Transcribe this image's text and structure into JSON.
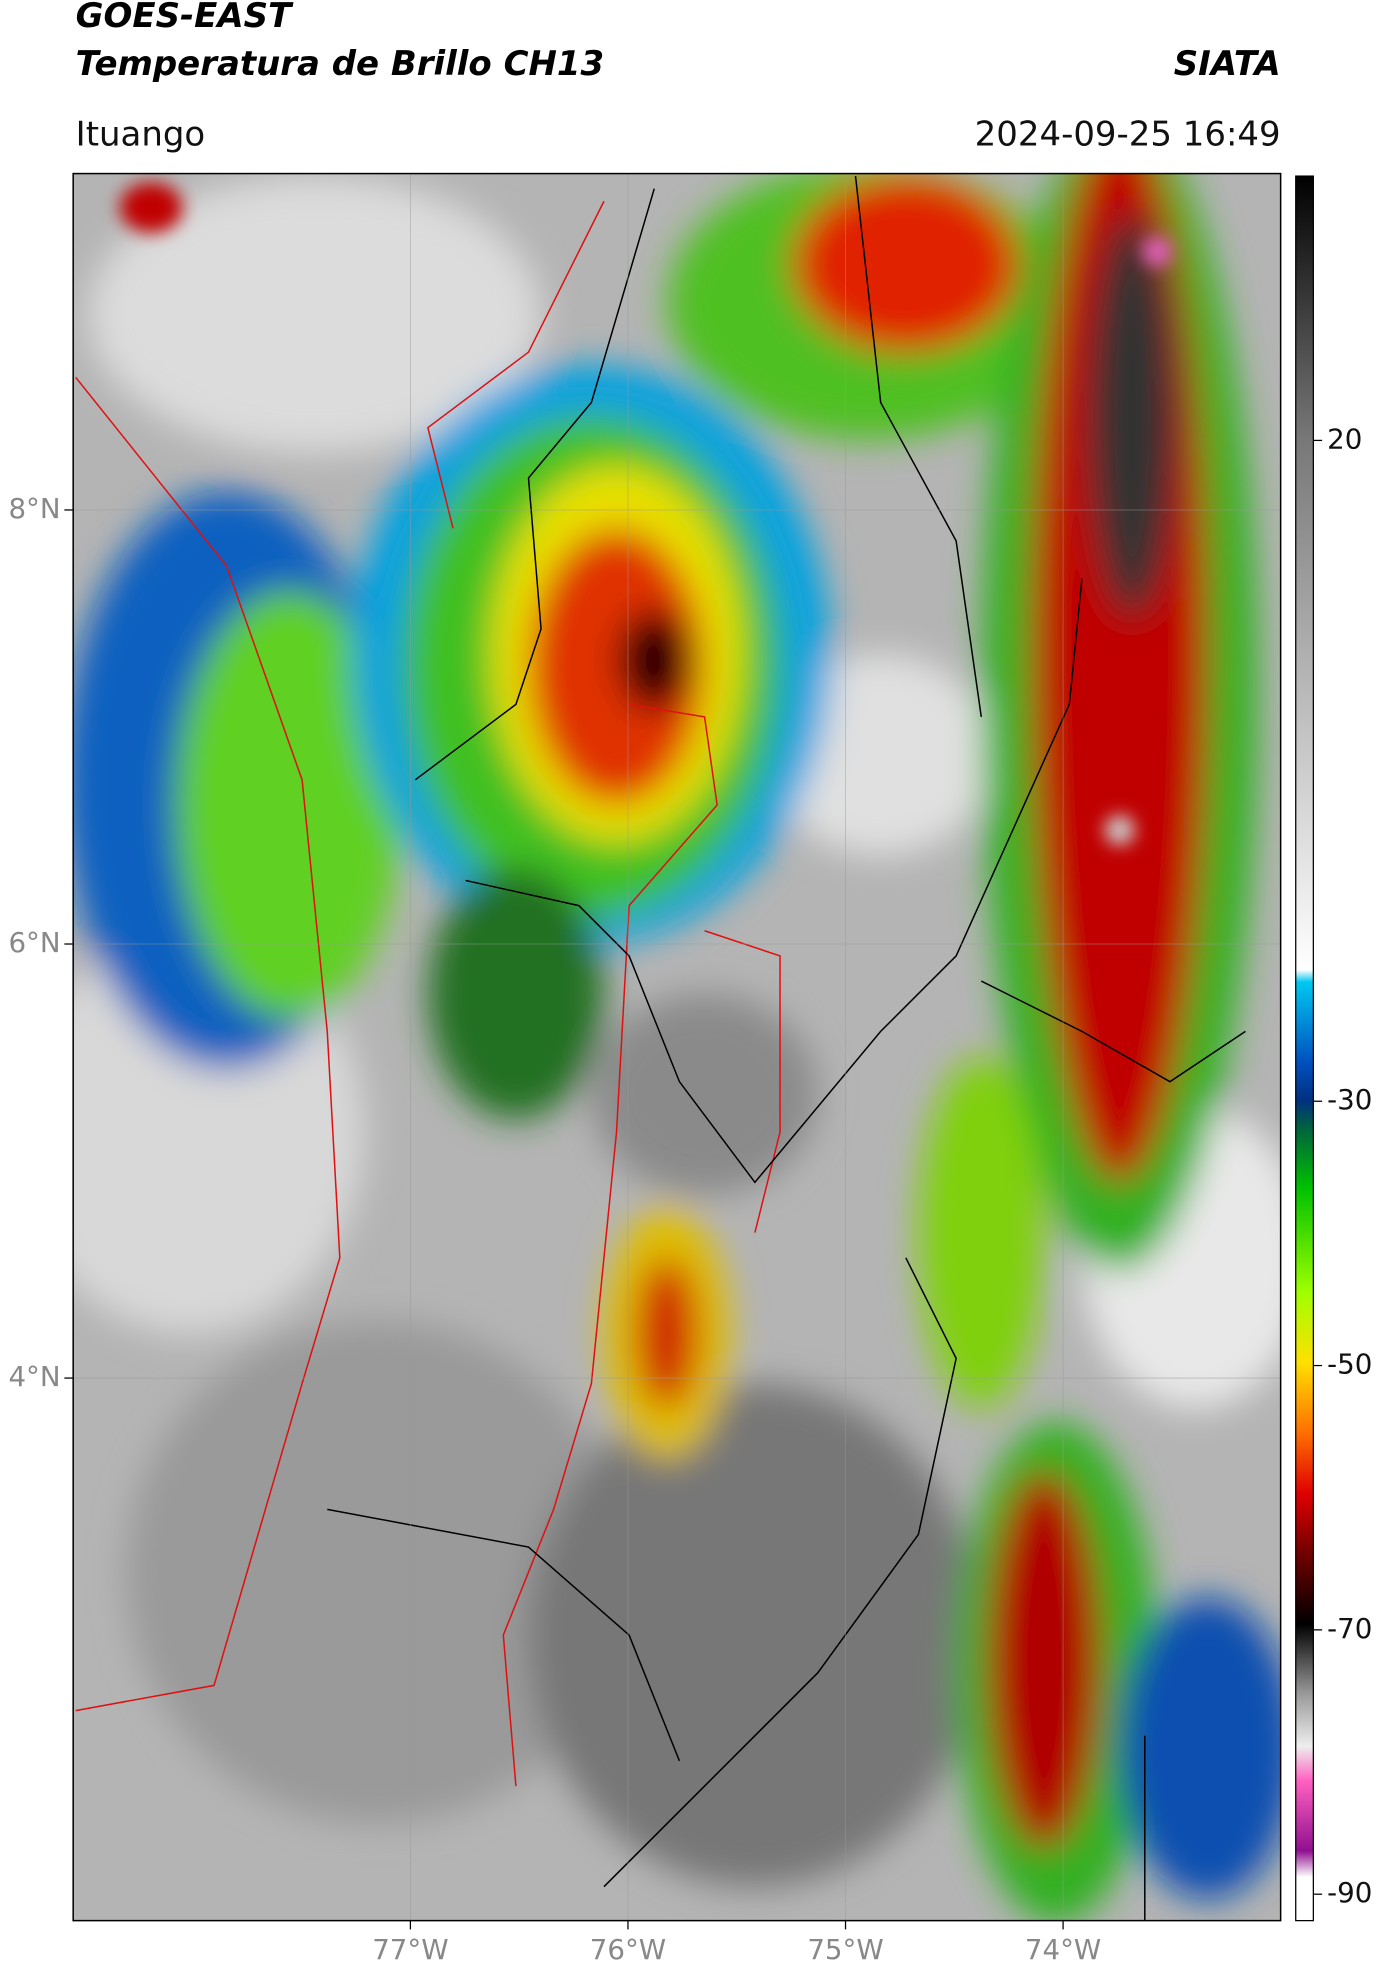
{
  "header": {
    "title": "GOES-EAST",
    "subtitle": "Temperatura de Brillo CH13",
    "source": "SIATA",
    "location": "Ituango",
    "datetime": "2024-09-25 16:49"
  },
  "map": {
    "xlim": [
      -78.55,
      -73.0
    ],
    "ylim": [
      1.5,
      9.55
    ],
    "xticks": [
      {
        "value": -77,
        "label": "77°W"
      },
      {
        "value": -76,
        "label": "76°W"
      },
      {
        "value": -75,
        "label": "75°W"
      },
      {
        "value": -74,
        "label": "74°W"
      }
    ],
    "yticks": [
      {
        "value": 8,
        "label": "8°N"
      },
      {
        "value": 6,
        "label": "6°N"
      },
      {
        "value": 4,
        "label": "4°N"
      }
    ],
    "grid": true
  },
  "colorbar": {
    "ylim": [
      -92,
      40
    ],
    "yticks": [
      20,
      -30,
      -50,
      -70,
      -90
    ]
  }
}
